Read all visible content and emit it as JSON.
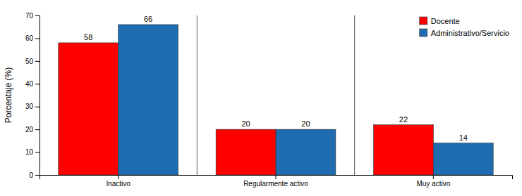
{
  "chart_data": {
    "type": "bar",
    "categories": [
      "Inactivo",
      "Regularmente activo",
      "Muy activo"
    ],
    "series": [
      {
        "name": "Docente",
        "color": "#FF0000",
        "values": [
          58,
          20,
          22
        ]
      },
      {
        "name": "Administrativo/Servicio",
        "color": "#1F6CB0",
        "values": [
          66,
          20,
          14
        ]
      }
    ],
    "ylabel": "Porcentaje (%)",
    "ylim": [
      0,
      70
    ],
    "yticks": [
      0,
      10,
      20,
      30,
      40,
      50,
      60,
      70
    ],
    "data_labels": true,
    "legend": "upper right",
    "grid": false
  }
}
